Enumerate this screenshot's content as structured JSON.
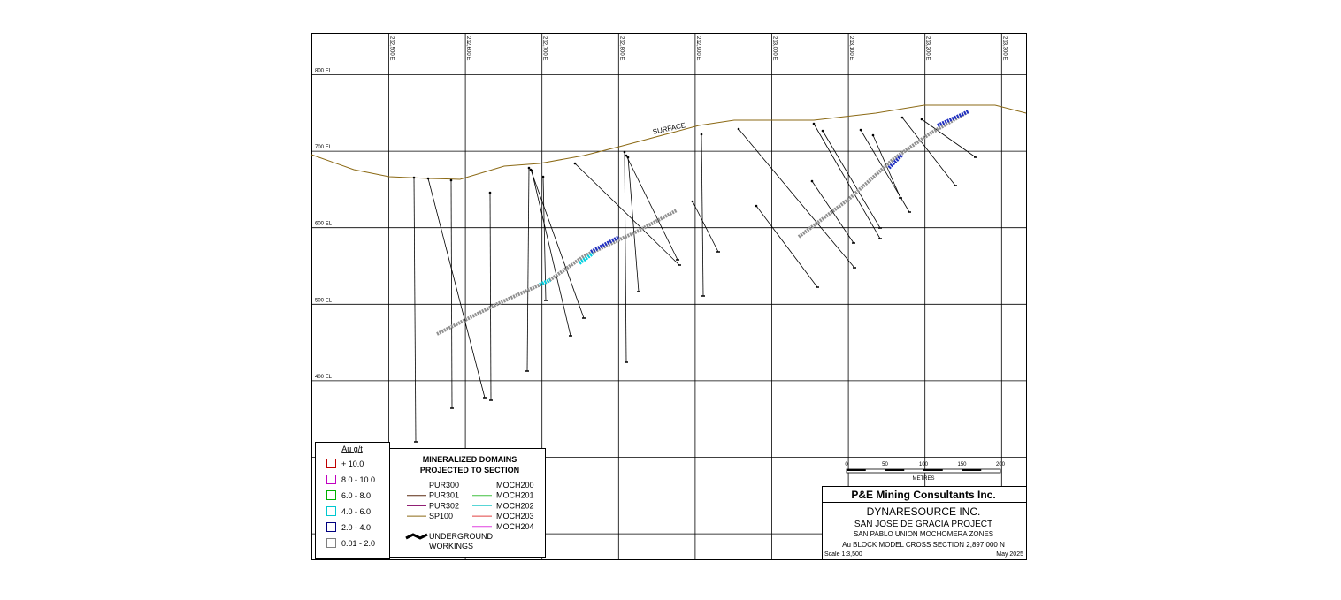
{
  "section": {
    "eastings": [
      "212,500 E",
      "212,600 E",
      "212,700 E",
      "212,800 E",
      "212,900 E",
      "213,000 E",
      "213,100 E",
      "213,200 E",
      "213,300 E"
    ],
    "elevations": [
      "800 EL",
      "700 EL",
      "600 EL",
      "500 EL",
      "400 EL"
    ],
    "surface_label": "SURFACE"
  },
  "grade_legend": {
    "title": "Au g/t",
    "items": [
      {
        "label": "+ 10.0",
        "color": "#c00000"
      },
      {
        "label": "8.0 - 10.0",
        "color": "#c000c0"
      },
      {
        "label": "6.0 - 8.0",
        "color": "#00b000"
      },
      {
        "label": "4.0 - 6.0",
        "color": "#00c8d0"
      },
      {
        "label": "2.0 - 4.0",
        "color": "#000080"
      },
      {
        "label": "0.01 - 2.0",
        "color": "#808080"
      }
    ]
  },
  "domain_legend": {
    "title": [
      "MINERALIZED DOMAINS",
      "PROJECTED TO SECTION"
    ],
    "left": [
      {
        "label": "PUR300",
        "color": "#ffffff"
      },
      {
        "label": "PUR301",
        "color": "#5a2a10"
      },
      {
        "label": "PUR302",
        "color": "#800060"
      },
      {
        "label": "SP100",
        "color": "#8b6914"
      }
    ],
    "right": [
      {
        "label": "MOCH200",
        "color": "#ffffff"
      },
      {
        "label": "MOCH201",
        "color": "#40c040"
      },
      {
        "label": "MOCH202",
        "color": "#40d0d0"
      },
      {
        "label": "MOCH203",
        "color": "#e04040"
      },
      {
        "label": "MOCH204",
        "color": "#e040e0"
      }
    ],
    "workings": [
      "UNDERGROUND",
      "WORKINGS"
    ]
  },
  "scale_bar": {
    "labels": [
      "0",
      "50",
      "100",
      "150",
      "200"
    ],
    "unit": "METRES"
  },
  "title_block": {
    "company": "P&E Mining Consultants Inc.",
    "client": "DYNARESOURCE INC.",
    "project": "SAN JOSE DE GRACIA PROJECT",
    "zones": "SAN PABLO UNION MOCHOMERA ZONES",
    "section": "Au BLOCK MODEL CROSS SECTION 2,897,000 N",
    "scale": "Scale 1:3,500",
    "date": "May 2025"
  }
}
